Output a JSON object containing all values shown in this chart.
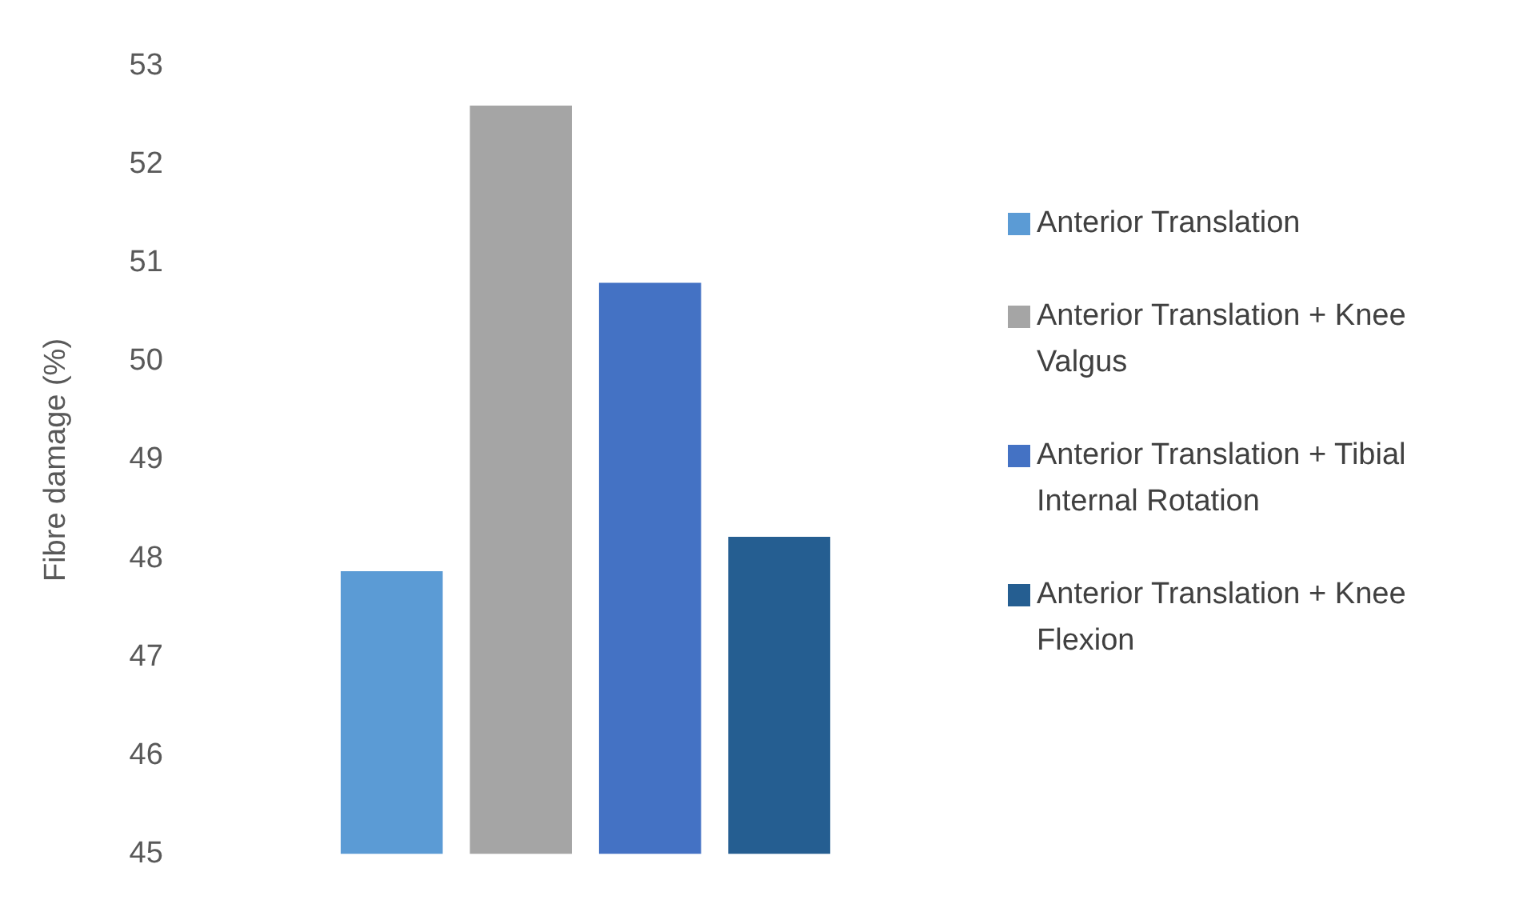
{
  "chart_data": {
    "type": "bar",
    "ylabel": "Fibre damage (%)",
    "categories": [
      null
    ],
    "series": [
      {
        "name": "Anterior Translation",
        "color": "#5b9bd5",
        "values": [
          47.87
        ]
      },
      {
        "name": "Anterior Translation + Knee Valgus",
        "color": "#a5a5a5",
        "values": [
          52.6
        ]
      },
      {
        "name": "Anterior Translation + Tibial Internal Rotation",
        "color": "#4472c4",
        "values": [
          50.8
        ]
      },
      {
        "name": "Anterior Translation + Knee Flexion",
        "color": "#255e91",
        "values": [
          48.22
        ]
      }
    ],
    "ylim": [
      45,
      53
    ],
    "yticks": [
      45,
      46,
      47,
      48,
      49,
      50,
      51,
      52,
      53
    ],
    "grid": false,
    "legend": "right"
  }
}
